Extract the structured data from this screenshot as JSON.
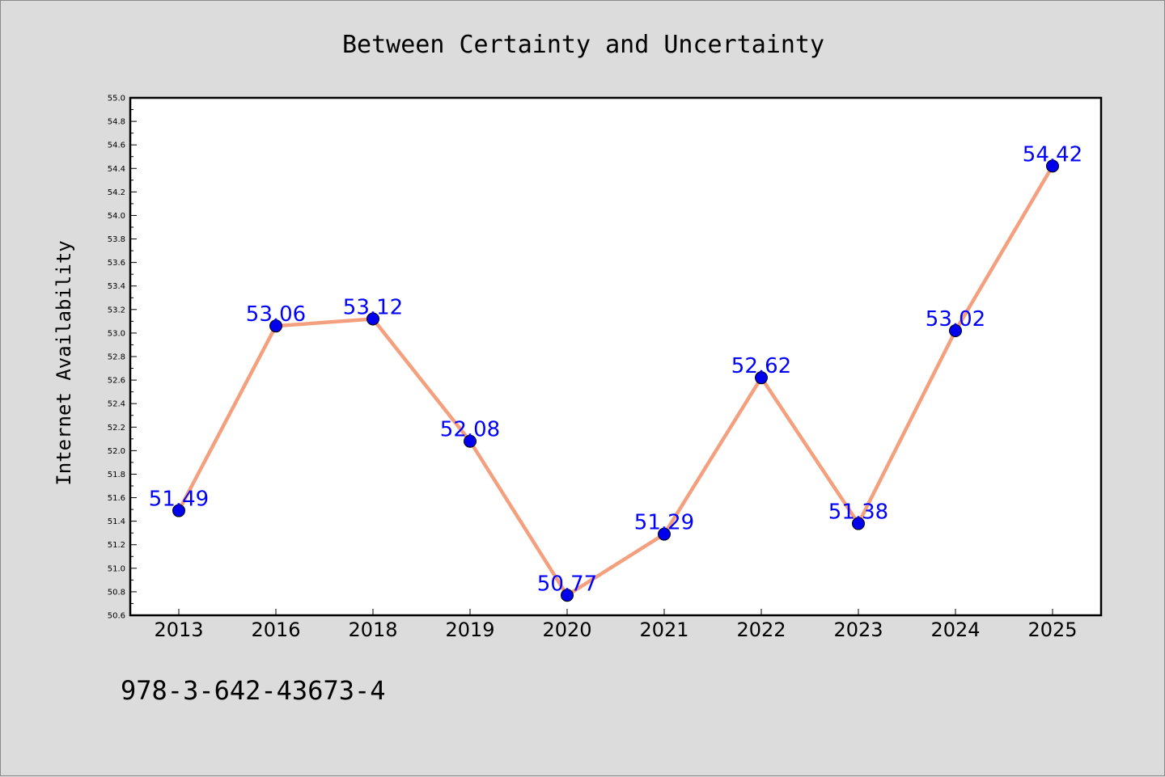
{
  "chart_data": {
    "type": "line",
    "title": "Between Certainty and Uncertainty",
    "xlabel": "",
    "ylabel": "Internet Availability",
    "categories": [
      "2013",
      "2016",
      "2018",
      "2019",
      "2020",
      "2021",
      "2022",
      "2023",
      "2024",
      "2025"
    ],
    "values": [
      51.49,
      53.06,
      53.12,
      52.08,
      50.77,
      51.29,
      52.62,
      51.38,
      53.02,
      54.42
    ],
    "data_labels": [
      "51.49",
      "53.06",
      "53.12",
      "52.08",
      "50.77",
      "51.29",
      "52.62",
      "51.38",
      "53.02",
      "54.42"
    ],
    "ylim": [
      50.6,
      55.0
    ],
    "yticks": [
      "50.6",
      "50.8",
      "51.0",
      "51.2",
      "51.4",
      "51.6",
      "51.8",
      "52.0",
      "52.2",
      "52.4",
      "52.6",
      "52.8",
      "53.0",
      "53.2",
      "53.4",
      "53.6",
      "53.8",
      "54.0",
      "54.2",
      "54.4",
      "54.6",
      "54.8",
      "55.0"
    ],
    "grid": false,
    "legend": "none",
    "colors": {
      "line": "#f4a07e",
      "marker": "#0000ee",
      "label": "#0000ff",
      "plot_background": "#ffffff",
      "figure_background": "#dcdcdc"
    }
  },
  "footer": {
    "isbn": "978-3-642-43673-4"
  }
}
